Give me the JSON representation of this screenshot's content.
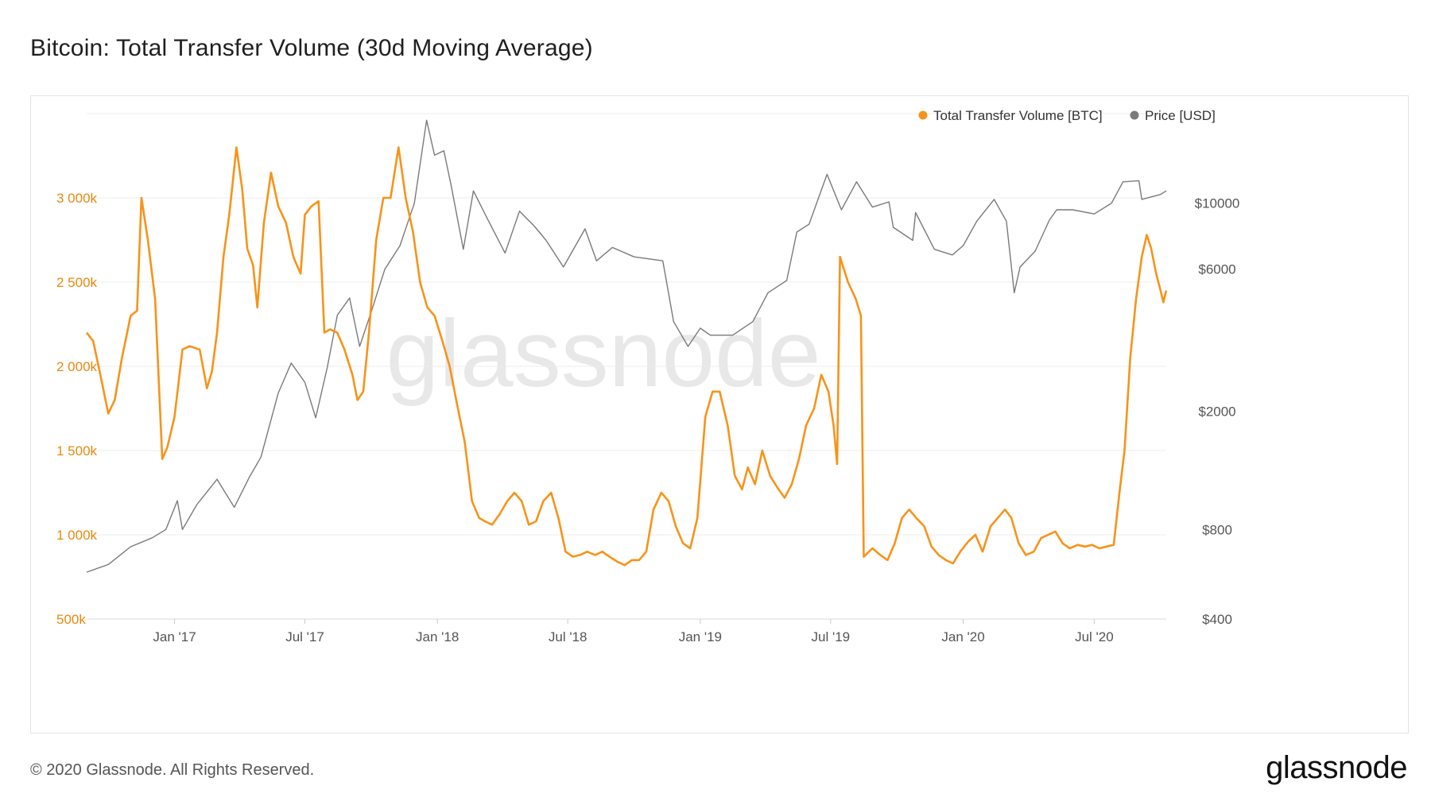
{
  "title": "Bitcoin: Total Transfer Volume (30d Moving Average)",
  "footer": "© 2020 Glassnode. All Rights Reserved.",
  "brand": "glassnode",
  "watermark": "glassnode",
  "colors": {
    "volume": "#f7931a",
    "price": "#7a7a7a",
    "grid": "#ececec",
    "axis_text": "#555555",
    "volume_axis_text": "#e8880f"
  },
  "chart_data": {
    "type": "line",
    "title": "Bitcoin: Total Transfer Volume (30d Moving Average)",
    "legend": {
      "position": "top-right",
      "entries": [
        "Total Transfer Volume [BTC]",
        "Price [USD]"
      ]
    },
    "grid": true,
    "x_range": [
      "2016-09-01",
      "2020-10-09"
    ],
    "x_ticks": [
      {
        "date": "2017-01-01",
        "label": "Jan '17"
      },
      {
        "date": "2017-07-01",
        "label": "Jul '17"
      },
      {
        "date": "2018-01-01",
        "label": "Jan '18"
      },
      {
        "date": "2018-07-01",
        "label": "Jul '18"
      },
      {
        "date": "2019-01-01",
        "label": "Jan '19"
      },
      {
        "date": "2019-07-01",
        "label": "Jul '19"
      },
      {
        "date": "2020-01-01",
        "label": "Jan '20"
      },
      {
        "date": "2020-07-01",
        "label": "Jul '20"
      }
    ],
    "y_left": {
      "series": "Total Transfer Volume [BTC]",
      "range": [
        500000,
        3500000
      ],
      "ticks": [
        {
          "value": 500000,
          "label": "500k"
        },
        {
          "value": 1000000,
          "label": "1 000k"
        },
        {
          "value": 1500000,
          "label": "1 500k"
        },
        {
          "value": 2000000,
          "label": "2 000k"
        },
        {
          "value": 2500000,
          "label": "2 500k"
        },
        {
          "value": 3000000,
          "label": "3 000k"
        }
      ]
    },
    "y_right": {
      "series": "Price [USD]",
      "scale": "log",
      "range": [
        400,
        20000
      ],
      "ticks": [
        {
          "value": 400,
          "label": "$400"
        },
        {
          "value": 800,
          "label": "$800"
        },
        {
          "value": 2000,
          "label": "$2000"
        },
        {
          "value": 6000,
          "label": "$6000"
        },
        {
          "value": 10000,
          "label": "$10000"
        }
      ]
    },
    "series": [
      {
        "name": "Total Transfer Volume [BTC]",
        "axis": "left",
        "points": [
          [
            "2016-09-01",
            2200000
          ],
          [
            "2016-09-10",
            2150000
          ],
          [
            "2016-09-20",
            1950000
          ],
          [
            "2016-10-01",
            1720000
          ],
          [
            "2016-10-10",
            1800000
          ],
          [
            "2016-10-20",
            2050000
          ],
          [
            "2016-11-01",
            2300000
          ],
          [
            "2016-11-10",
            2330000
          ],
          [
            "2016-11-16",
            3000000
          ],
          [
            "2016-11-25",
            2750000
          ],
          [
            "2016-12-05",
            2400000
          ],
          [
            "2016-12-15",
            1450000
          ],
          [
            "2016-12-22",
            1520000
          ],
          [
            "2017-01-01",
            1700000
          ],
          [
            "2017-01-12",
            2100000
          ],
          [
            "2017-01-22",
            2120000
          ],
          [
            "2017-02-05",
            2100000
          ],
          [
            "2017-02-15",
            1870000
          ],
          [
            "2017-02-22",
            1970000
          ],
          [
            "2017-03-01",
            2200000
          ],
          [
            "2017-03-10",
            2650000
          ],
          [
            "2017-03-18",
            2900000
          ],
          [
            "2017-03-28",
            3300000
          ],
          [
            "2017-04-05",
            3050000
          ],
          [
            "2017-04-12",
            2700000
          ],
          [
            "2017-04-20",
            2600000
          ],
          [
            "2017-04-26",
            2350000
          ],
          [
            "2017-05-05",
            2850000
          ],
          [
            "2017-05-15",
            3150000
          ],
          [
            "2017-05-25",
            2950000
          ],
          [
            "2017-06-05",
            2850000
          ],
          [
            "2017-06-15",
            2650000
          ],
          [
            "2017-06-25",
            2550000
          ],
          [
            "2017-07-01",
            2900000
          ],
          [
            "2017-07-10",
            2950000
          ],
          [
            "2017-07-20",
            2980000
          ],
          [
            "2017-07-28",
            2200000
          ],
          [
            "2017-08-05",
            2220000
          ],
          [
            "2017-08-15",
            2200000
          ],
          [
            "2017-08-25",
            2100000
          ],
          [
            "2017-09-05",
            1950000
          ],
          [
            "2017-09-12",
            1800000
          ],
          [
            "2017-09-20",
            1850000
          ],
          [
            "2017-09-28",
            2200000
          ],
          [
            "2017-10-08",
            2750000
          ],
          [
            "2017-10-18",
            3000000
          ],
          [
            "2017-10-28",
            3000000
          ],
          [
            "2017-11-08",
            3300000
          ],
          [
            "2017-11-18",
            3000000
          ],
          [
            "2017-11-28",
            2800000
          ],
          [
            "2017-12-08",
            2500000
          ],
          [
            "2017-12-18",
            2350000
          ],
          [
            "2017-12-28",
            2300000
          ],
          [
            "2018-01-08",
            2150000
          ],
          [
            "2018-01-18",
            2000000
          ],
          [
            "2018-01-28",
            1780000
          ],
          [
            "2018-02-08",
            1550000
          ],
          [
            "2018-02-18",
            1200000
          ],
          [
            "2018-02-28",
            1100000
          ],
          [
            "2018-03-08",
            1080000
          ],
          [
            "2018-03-18",
            1060000
          ],
          [
            "2018-03-28",
            1120000
          ],
          [
            "2018-04-08",
            1200000
          ],
          [
            "2018-04-18",
            1250000
          ],
          [
            "2018-04-28",
            1200000
          ],
          [
            "2018-05-08",
            1060000
          ],
          [
            "2018-05-18",
            1080000
          ],
          [
            "2018-05-28",
            1200000
          ],
          [
            "2018-06-08",
            1250000
          ],
          [
            "2018-06-18",
            1100000
          ],
          [
            "2018-06-28",
            900000
          ],
          [
            "2018-07-08",
            870000
          ],
          [
            "2018-07-18",
            880000
          ],
          [
            "2018-07-28",
            900000
          ],
          [
            "2018-08-08",
            880000
          ],
          [
            "2018-08-18",
            900000
          ],
          [
            "2018-08-28",
            870000
          ],
          [
            "2018-09-08",
            840000
          ],
          [
            "2018-09-18",
            820000
          ],
          [
            "2018-09-28",
            850000
          ],
          [
            "2018-10-08",
            850000
          ],
          [
            "2018-10-18",
            900000
          ],
          [
            "2018-10-28",
            1150000
          ],
          [
            "2018-11-08",
            1250000
          ],
          [
            "2018-11-18",
            1200000
          ],
          [
            "2018-11-28",
            1050000
          ],
          [
            "2018-12-08",
            950000
          ],
          [
            "2018-12-18",
            920000
          ],
          [
            "2018-12-28",
            1100000
          ],
          [
            "2019-01-08",
            1700000
          ],
          [
            "2019-01-18",
            1850000
          ],
          [
            "2019-01-28",
            1850000
          ],
          [
            "2019-02-08",
            1650000
          ],
          [
            "2019-02-18",
            1350000
          ],
          [
            "2019-02-28",
            1270000
          ],
          [
            "2019-03-08",
            1400000
          ],
          [
            "2019-03-18",
            1300000
          ],
          [
            "2019-03-28",
            1500000
          ],
          [
            "2019-04-08",
            1350000
          ],
          [
            "2019-04-18",
            1280000
          ],
          [
            "2019-04-28",
            1220000
          ],
          [
            "2019-05-08",
            1300000
          ],
          [
            "2019-05-18",
            1450000
          ],
          [
            "2019-05-28",
            1650000
          ],
          [
            "2019-06-08",
            1750000
          ],
          [
            "2019-06-18",
            1950000
          ],
          [
            "2019-06-28",
            1850000
          ],
          [
            "2019-07-05",
            1650000
          ],
          [
            "2019-07-10",
            1420000
          ],
          [
            "2019-07-14",
            2650000
          ],
          [
            "2019-07-25",
            2500000
          ],
          [
            "2019-08-05",
            2400000
          ],
          [
            "2019-08-12",
            2300000
          ],
          [
            "2019-08-16",
            870000
          ],
          [
            "2019-08-28",
            920000
          ],
          [
            "2019-09-08",
            880000
          ],
          [
            "2019-09-18",
            850000
          ],
          [
            "2019-09-28",
            950000
          ],
          [
            "2019-10-08",
            1100000
          ],
          [
            "2019-10-18",
            1150000
          ],
          [
            "2019-10-28",
            1100000
          ],
          [
            "2019-11-08",
            1050000
          ],
          [
            "2019-11-18",
            930000
          ],
          [
            "2019-11-28",
            880000
          ],
          [
            "2019-12-08",
            850000
          ],
          [
            "2019-12-18",
            830000
          ],
          [
            "2019-12-28",
            900000
          ],
          [
            "2020-01-08",
            960000
          ],
          [
            "2020-01-18",
            1000000
          ],
          [
            "2020-01-28",
            900000
          ],
          [
            "2020-02-08",
            1050000
          ],
          [
            "2020-02-18",
            1100000
          ],
          [
            "2020-02-28",
            1150000
          ],
          [
            "2020-03-08",
            1100000
          ],
          [
            "2020-03-18",
            950000
          ],
          [
            "2020-03-28",
            880000
          ],
          [
            "2020-04-08",
            900000
          ],
          [
            "2020-04-18",
            980000
          ],
          [
            "2020-04-28",
            1000000
          ],
          [
            "2020-05-08",
            1020000
          ],
          [
            "2020-05-18",
            950000
          ],
          [
            "2020-05-28",
            920000
          ],
          [
            "2020-06-08",
            940000
          ],
          [
            "2020-06-18",
            930000
          ],
          [
            "2020-06-28",
            940000
          ],
          [
            "2020-07-08",
            920000
          ],
          [
            "2020-07-18",
            930000
          ],
          [
            "2020-07-28",
            940000
          ],
          [
            "2020-08-05",
            1250000
          ],
          [
            "2020-08-12",
            1500000
          ],
          [
            "2020-08-20",
            2050000
          ],
          [
            "2020-08-28",
            2400000
          ],
          [
            "2020-09-05",
            2650000
          ],
          [
            "2020-09-12",
            2780000
          ],
          [
            "2020-09-18",
            2700000
          ],
          [
            "2020-09-25",
            2550000
          ],
          [
            "2020-10-01",
            2450000
          ],
          [
            "2020-10-05",
            2380000
          ],
          [
            "2020-10-09",
            2450000
          ]
        ]
      },
      {
        "name": "Price [USD]",
        "axis": "right",
        "points": [
          [
            "2016-09-01",
            575
          ],
          [
            "2016-10-01",
            610
          ],
          [
            "2016-11-01",
            700
          ],
          [
            "2016-12-01",
            750
          ],
          [
            "2016-12-20",
            800
          ],
          [
            "2017-01-05",
            1000
          ],
          [
            "2017-01-12",
            800
          ],
          [
            "2017-02-01",
            970
          ],
          [
            "2017-03-01",
            1180
          ],
          [
            "2017-03-25",
            950
          ],
          [
            "2017-04-15",
            1200
          ],
          [
            "2017-05-01",
            1400
          ],
          [
            "2017-05-25",
            2300
          ],
          [
            "2017-06-12",
            2900
          ],
          [
            "2017-07-01",
            2500
          ],
          [
            "2017-07-16",
            1900
          ],
          [
            "2017-08-01",
            2800
          ],
          [
            "2017-08-15",
            4200
          ],
          [
            "2017-09-01",
            4800
          ],
          [
            "2017-09-15",
            3300
          ],
          [
            "2017-10-01",
            4300
          ],
          [
            "2017-10-20",
            6000
          ],
          [
            "2017-11-10",
            7200
          ],
          [
            "2017-11-30",
            10000
          ],
          [
            "2017-12-17",
            19000
          ],
          [
            "2017-12-28",
            14500
          ],
          [
            "2018-01-10",
            15000
          ],
          [
            "2018-01-20",
            11500
          ],
          [
            "2018-02-06",
            7000
          ],
          [
            "2018-02-20",
            11000
          ],
          [
            "2018-03-10",
            9000
          ],
          [
            "2018-04-05",
            6800
          ],
          [
            "2018-04-25",
            9400
          ],
          [
            "2018-05-15",
            8400
          ],
          [
            "2018-06-01",
            7500
          ],
          [
            "2018-06-25",
            6100
          ],
          [
            "2018-07-25",
            8200
          ],
          [
            "2018-08-10",
            6400
          ],
          [
            "2018-09-01",
            7100
          ],
          [
            "2018-10-01",
            6600
          ],
          [
            "2018-11-10",
            6400
          ],
          [
            "2018-11-25",
            4000
          ],
          [
            "2018-12-15",
            3300
          ],
          [
            "2019-01-01",
            3800
          ],
          [
            "2019-01-15",
            3600
          ],
          [
            "2019-02-15",
            3600
          ],
          [
            "2019-03-15",
            4000
          ],
          [
            "2019-04-05",
            5000
          ],
          [
            "2019-05-01",
            5500
          ],
          [
            "2019-05-15",
            8000
          ],
          [
            "2019-06-01",
            8500
          ],
          [
            "2019-06-26",
            12500
          ],
          [
            "2019-07-16",
            9500
          ],
          [
            "2019-08-06",
            11800
          ],
          [
            "2019-08-28",
            9700
          ],
          [
            "2019-09-20",
            10100
          ],
          [
            "2019-09-26",
            8300
          ],
          [
            "2019-10-23",
            7500
          ],
          [
            "2019-10-27",
            9300
          ],
          [
            "2019-11-22",
            7000
          ],
          [
            "2019-12-17",
            6700
          ],
          [
            "2020-01-01",
            7200
          ],
          [
            "2020-01-20",
            8700
          ],
          [
            "2020-02-13",
            10300
          ],
          [
            "2020-03-01",
            8700
          ],
          [
            "2020-03-12",
            5000
          ],
          [
            "2020-03-20",
            6100
          ],
          [
            "2020-04-10",
            6900
          ],
          [
            "2020-04-30",
            8800
          ],
          [
            "2020-05-10",
            9500
          ],
          [
            "2020-06-01",
            9500
          ],
          [
            "2020-07-01",
            9200
          ],
          [
            "2020-07-25",
            10000
          ],
          [
            "2020-08-10",
            11800
          ],
          [
            "2020-09-01",
            11900
          ],
          [
            "2020-09-05",
            10300
          ],
          [
            "2020-10-01",
            10700
          ],
          [
            "2020-10-09",
            11000
          ]
        ]
      }
    ]
  }
}
